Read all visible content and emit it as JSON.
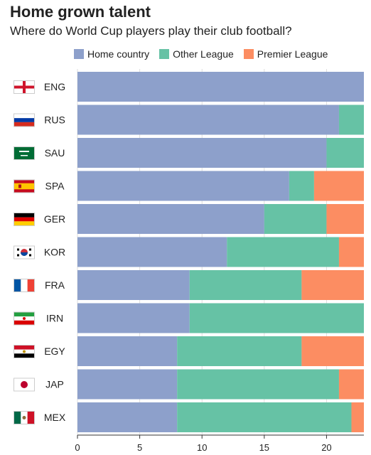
{
  "header": {
    "title": "Home grown talent",
    "subtitle": "Where do World Cup players play their club football?"
  },
  "legend": [
    {
      "label": "Home country",
      "color": "#8da0cb"
    },
    {
      "label": "Other League",
      "color": "#66c2a5"
    },
    {
      "label": "Premier League",
      "color": "#fc8d62"
    }
  ],
  "chart_data": {
    "type": "bar",
    "orientation": "horizontal",
    "stacked": true,
    "title": "Home grown talent",
    "subtitle": "Where do World Cup players play their club football?",
    "xlim": [
      0,
      23
    ],
    "xticks": [
      0,
      5,
      10,
      15,
      20
    ],
    "grid": true,
    "legend_position": "top",
    "categories": [
      "ENG",
      "RUS",
      "SAU",
      "SPA",
      "GER",
      "KOR",
      "FRA",
      "IRN",
      "EGY",
      "JAP",
      "MEX"
    ],
    "flags": [
      "england-flag",
      "russia-flag",
      "saudi-arabia-flag",
      "spain-flag",
      "germany-flag",
      "south-korea-flag",
      "france-flag",
      "iran-flag",
      "egypt-flag",
      "japan-flag",
      "mexico-flag"
    ],
    "series": [
      {
        "name": "Home country",
        "color": "#8da0cb",
        "values": [
          23,
          21,
          20,
          17,
          15,
          12,
          9,
          9,
          8,
          8,
          8
        ]
      },
      {
        "name": "Other League",
        "color": "#66c2a5",
        "values": [
          0,
          2,
          3,
          2,
          5,
          9,
          9,
          14,
          10,
          13,
          14
        ]
      },
      {
        "name": "Premier League",
        "color": "#fc8d62",
        "values": [
          0,
          0,
          0,
          4,
          3,
          2,
          5,
          0,
          5,
          2,
          1
        ]
      }
    ]
  }
}
